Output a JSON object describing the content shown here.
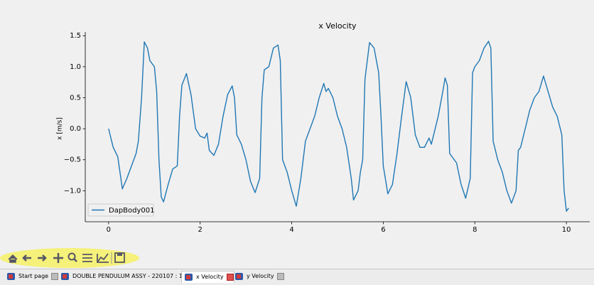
{
  "chart_data": {
    "type": "line",
    "title": "x Velocity",
    "y_label": "x [m/s]",
    "x": [
      0,
      0.1,
      0.2,
      0.3,
      0.4,
      0.5,
      0.6,
      0.65,
      0.72,
      0.78,
      0.85,
      0.9,
      1.0,
      1.05,
      1.1,
      1.15,
      1.2,
      1.3,
      1.4,
      1.5,
      1.55,
      1.6,
      1.7,
      1.8,
      1.9,
      2.0,
      2.1,
      2.15,
      2.2,
      2.3,
      2.4,
      2.5,
      2.6,
      2.7,
      2.75,
      2.8,
      2.9,
      3.0,
      3.1,
      3.2,
      3.3,
      3.35,
      3.4,
      3.5,
      3.6,
      3.7,
      3.75,
      3.8,
      3.9,
      4.0,
      4.1,
      4.2,
      4.3,
      4.4,
      4.5,
      4.6,
      4.7,
      4.75,
      4.8,
      4.9,
      5.0,
      5.1,
      5.2,
      5.3,
      5.35,
      5.45,
      5.5,
      5.55,
      5.6,
      5.7,
      5.8,
      5.9,
      5.95,
      6.0,
      6.1,
      6.2,
      6.3,
      6.4,
      6.5,
      6.6,
      6.7,
      6.8,
      6.9,
      7.0,
      7.05,
      7.1,
      7.2,
      7.3,
      7.35,
      7.4,
      7.45,
      7.55,
      7.6,
      7.7,
      7.8,
      7.9,
      7.95,
      8.0,
      8.1,
      8.2,
      8.3,
      8.35,
      8.4,
      8.5,
      8.6,
      8.7,
      8.8,
      8.9,
      8.95,
      9.0,
      9.1,
      9.2,
      9.3,
      9.4,
      9.5,
      9.6,
      9.7,
      9.8,
      9.9,
      9.95,
      10.0,
      10.05
    ],
    "series": [
      {
        "name": "DapBody001",
        "color": "#1f77b4",
        "values": [
          0,
          -0.3,
          -0.45,
          -0.97,
          -0.8,
          -0.6,
          -0.4,
          -0.2,
          0.5,
          1.4,
          1.3,
          1.1,
          1.0,
          0.6,
          -0.5,
          -1.1,
          -1.18,
          -0.9,
          -0.65,
          -0.6,
          0.2,
          0.7,
          0.89,
          0.55,
          0.0,
          -0.12,
          -0.15,
          -0.07,
          -0.35,
          -0.43,
          -0.25,
          0.2,
          0.55,
          0.69,
          0.5,
          -0.1,
          -0.25,
          -0.5,
          -0.85,
          -1.03,
          -0.8,
          0.5,
          0.95,
          1.0,
          1.3,
          1.35,
          1.1,
          -0.5,
          -0.7,
          -1.0,
          -1.25,
          -0.8,
          -0.2,
          0.0,
          0.2,
          0.5,
          0.73,
          0.6,
          0.65,
          0.5,
          0.2,
          0.0,
          -0.3,
          -0.8,
          -1.15,
          -1.0,
          -0.7,
          -0.5,
          0.8,
          1.39,
          1.3,
          0.9,
          0.2,
          -0.6,
          -1.05,
          -0.9,
          -0.4,
          0.2,
          0.76,
          0.5,
          -0.1,
          -0.3,
          -0.3,
          -0.15,
          -0.25,
          -0.1,
          0.2,
          0.6,
          0.82,
          0.7,
          -0.4,
          -0.5,
          -0.55,
          -0.9,
          -1.12,
          -0.8,
          0.9,
          1.0,
          1.1,
          1.3,
          1.41,
          1.3,
          -0.2,
          -0.5,
          -0.7,
          -1.0,
          -1.2,
          -1.0,
          -0.35,
          -0.3,
          0.0,
          0.3,
          0.5,
          0.6,
          0.85,
          0.6,
          0.35,
          0.2,
          -0.1,
          -1.0,
          -1.33,
          -1.28
        ]
      }
    ],
    "xlim": [
      -0.51,
      10.51
    ],
    "ylim": [
      -1.5,
      1.56
    ],
    "xticks": [
      0,
      2,
      4,
      6,
      8,
      10
    ],
    "yticks": [
      {
        "value": -1.0,
        "label": "−1.0"
      },
      {
        "value": -0.5,
        "label": "−0.5"
      },
      {
        "value": 0.0,
        "label": "0.0"
      },
      {
        "value": 0.5,
        "label": "0.5"
      },
      {
        "value": 1.0,
        "label": "1.0"
      },
      {
        "value": 1.5,
        "label": "1.5"
      }
    ],
    "grid": false,
    "legend_position": "lower left"
  },
  "tabs": [
    {
      "label": "Start page"
    },
    {
      "label": "DOUBLE PENDULUM ASSY - 220107 : 1*"
    },
    {
      "label": "x Velocity",
      "active": true
    },
    {
      "label": "y Velocity"
    }
  ]
}
